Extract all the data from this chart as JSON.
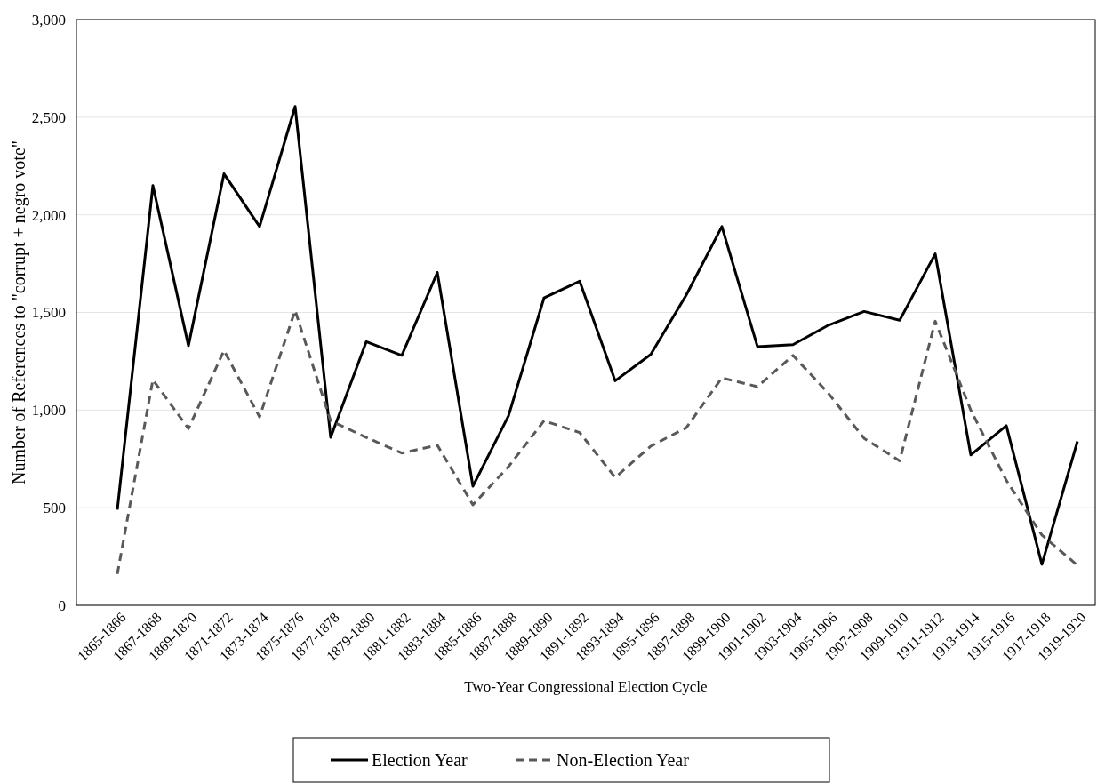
{
  "chart_data": {
    "type": "line",
    "xlabel": "Two-Year Congressional Election Cycle",
    "ylabel": "Number of References to \"corrupt + negro vote\"",
    "categories": [
      "1865-1866",
      "1867-1868",
      "1869-1870",
      "1871-1872",
      "1873-1874",
      "1875-1876",
      "1877-1878",
      "1879-1880",
      "1881-1882",
      "1883-1884",
      "1885-1886",
      "1887-1888",
      "1889-1890",
      "1891-1892",
      "1893-1894",
      "1895-1896",
      "1897-1898",
      "1899-1900",
      "1901-1902",
      "1903-1904",
      "1905-1906",
      "1907-1908",
      "1909-1910",
      "1911-1912",
      "1913-1914",
      "1915-1916",
      "1917-1918",
      "1919-1920"
    ],
    "series": [
      {
        "name": "Election Year",
        "color": "#000000",
        "line_style": "solid",
        "values": [
          490,
          2150,
          1330,
          2210,
          1940,
          2555,
          860,
          1350,
          1280,
          1705,
          610,
          970,
          1575,
          1660,
          1150,
          1285,
          1590,
          1940,
          1325,
          1335,
          1435,
          1505,
          1460,
          1800,
          770,
          920,
          210,
          840
        ]
      },
      {
        "name": "Non-Election Year",
        "color": "#595959",
        "line_style": "dashed",
        "values": [
          160,
          1155,
          905,
          1305,
          965,
          1510,
          945,
          860,
          780,
          820,
          515,
          710,
          945,
          885,
          655,
          815,
          910,
          1165,
          1120,
          1280,
          1085,
          855,
          740,
          1455,
          1000,
          640,
          360,
          205
        ]
      }
    ],
    "ylim": [
      0,
      3000
    ],
    "yticks": [
      {
        "value": 0,
        "label": "0"
      },
      {
        "value": 500,
        "label": "500"
      },
      {
        "value": 1000,
        "label": "1,000"
      },
      {
        "value": 1500,
        "label": "1,500"
      },
      {
        "value": 2000,
        "label": "2,000"
      },
      {
        "value": 2500,
        "label": "2,500"
      },
      {
        "value": 3000,
        "label": "3,000"
      }
    ],
    "grid": "y",
    "legend": "bottom",
    "marker": "none"
  }
}
